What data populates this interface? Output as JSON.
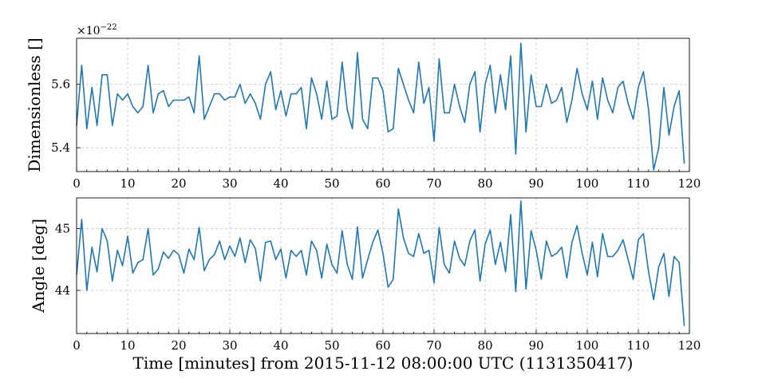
{
  "chart_data": [
    {
      "type": "line",
      "xlabel": "Time [minutes] from 2015-11-12 08:00:00 UTC (1131350417)",
      "ylabel": "Dimensionless []",
      "scale_label": "×10",
      "scale_exponent": "−22",
      "xlim": [
        0,
        120
      ],
      "ylim": [
        5.325,
        5.745
      ],
      "xticks": [
        0,
        10,
        20,
        30,
        40,
        50,
        60,
        70,
        80,
        90,
        100,
        110,
        120
      ],
      "yticks": [
        5.4,
        5.6
      ],
      "ytick_labels": [
        "5.4",
        "5.6"
      ],
      "grid": true,
      "color": "#1f77b4",
      "x": [
        0,
        1,
        2,
        3,
        4,
        5,
        6,
        7,
        8,
        9,
        10,
        11,
        12,
        13,
        14,
        15,
        16,
        17,
        18,
        19,
        20,
        21,
        22,
        23,
        24,
        25,
        26,
        27,
        28,
        29,
        30,
        31,
        32,
        33,
        34,
        35,
        36,
        37,
        38,
        39,
        40,
        41,
        42,
        43,
        44,
        45,
        46,
        47,
        48,
        49,
        50,
        51,
        52,
        53,
        54,
        55,
        56,
        57,
        58,
        59,
        60,
        61,
        62,
        63,
        64,
        65,
        66,
        67,
        68,
        69,
        70,
        71,
        72,
        73,
        74,
        75,
        76,
        77,
        78,
        79,
        80,
        81,
        82,
        83,
        84,
        85,
        86,
        87,
        88,
        89,
        90,
        91,
        92,
        93,
        94,
        95,
        96,
        97,
        98,
        99,
        100,
        101,
        102,
        103,
        104,
        105,
        106,
        107,
        108,
        109,
        110,
        111,
        112,
        113,
        114,
        115,
        116,
        117,
        118,
        119
      ],
      "y": [
        5.47,
        5.66,
        5.46,
        5.59,
        5.47,
        5.63,
        5.63,
        5.47,
        5.57,
        5.55,
        5.57,
        5.53,
        5.51,
        5.53,
        5.66,
        5.51,
        5.57,
        5.58,
        5.53,
        5.55,
        5.55,
        5.55,
        5.56,
        5.51,
        5.69,
        5.49,
        5.53,
        5.57,
        5.57,
        5.55,
        5.56,
        5.56,
        5.6,
        5.54,
        5.57,
        5.54,
        5.49,
        5.6,
        5.64,
        5.52,
        5.58,
        5.5,
        5.57,
        5.57,
        5.59,
        5.46,
        5.62,
        5.57,
        5.49,
        5.61,
        5.49,
        5.5,
        5.67,
        5.52,
        5.46,
        5.7,
        5.49,
        5.46,
        5.62,
        5.62,
        5.58,
        5.45,
        5.46,
        5.65,
        5.6,
        5.55,
        5.51,
        5.67,
        5.54,
        5.59,
        5.42,
        5.68,
        5.51,
        5.51,
        5.6,
        5.53,
        5.48,
        5.6,
        5.64,
        5.45,
        5.6,
        5.66,
        5.51,
        5.63,
        5.52,
        5.69,
        5.38,
        5.73,
        5.45,
        5.63,
        5.53,
        5.53,
        5.6,
        5.54,
        5.55,
        5.59,
        5.48,
        5.55,
        5.65,
        5.57,
        5.52,
        5.61,
        5.49,
        5.62,
        5.55,
        5.51,
        5.59,
        5.61,
        5.54,
        5.49,
        5.59,
        5.64,
        5.52,
        5.33,
        5.4,
        5.59,
        5.44,
        5.53,
        5.58,
        5.35
      ]
    },
    {
      "type": "line",
      "xlabel": "Time [minutes] from 2015-11-12 08:00:00 UTC (1131350417)",
      "ylabel": "Angle [deg]",
      "xlim": [
        0,
        120
      ],
      "ylim": [
        43.3,
        45.5
      ],
      "xticks": [
        0,
        10,
        20,
        30,
        40,
        50,
        60,
        70,
        80,
        90,
        100,
        110,
        120
      ],
      "yticks": [
        44,
        45
      ],
      "ytick_labels": [
        "44",
        "45"
      ],
      "grid": true,
      "color": "#1f77b4",
      "x": [
        0,
        1,
        2,
        3,
        4,
        5,
        6,
        7,
        8,
        9,
        10,
        11,
        12,
        13,
        14,
        15,
        16,
        17,
        18,
        19,
        20,
        21,
        22,
        23,
        24,
        25,
        26,
        27,
        28,
        29,
        30,
        31,
        32,
        33,
        34,
        35,
        36,
        37,
        38,
        39,
        40,
        41,
        42,
        43,
        44,
        45,
        46,
        47,
        48,
        49,
        50,
        51,
        52,
        53,
        54,
        55,
        56,
        57,
        58,
        59,
        60,
        61,
        62,
        63,
        64,
        65,
        66,
        67,
        68,
        69,
        70,
        71,
        72,
        73,
        74,
        75,
        76,
        77,
        78,
        79,
        80,
        81,
        82,
        83,
        84,
        85,
        86,
        87,
        88,
        89,
        90,
        91,
        92,
        93,
        94,
        95,
        96,
        97,
        98,
        99,
        100,
        101,
        102,
        103,
        104,
        105,
        106,
        107,
        108,
        109,
        110,
        111,
        112,
        113,
        114,
        115,
        116,
        117,
        118,
        119
      ],
      "y": [
        44.25,
        45.15,
        44.0,
        44.7,
        44.3,
        45.0,
        44.8,
        44.15,
        44.65,
        44.4,
        44.88,
        44.28,
        44.45,
        44.5,
        45.0,
        44.25,
        44.35,
        44.62,
        44.52,
        44.65,
        44.58,
        44.28,
        44.67,
        44.5,
        45.02,
        44.32,
        44.5,
        44.58,
        44.8,
        44.5,
        44.72,
        44.55,
        44.85,
        44.45,
        44.82,
        44.68,
        44.15,
        44.78,
        44.8,
        44.5,
        44.67,
        44.2,
        44.65,
        44.55,
        44.65,
        44.25,
        44.8,
        44.65,
        44.2,
        44.75,
        44.42,
        44.28,
        44.97,
        44.42,
        44.18,
        45.03,
        44.2,
        44.5,
        44.78,
        44.98,
        44.6,
        44.05,
        44.18,
        45.32,
        44.85,
        44.6,
        44.55,
        44.92,
        44.6,
        44.65,
        44.12,
        45.02,
        44.42,
        44.28,
        44.8,
        44.52,
        44.4,
        44.8,
        44.98,
        44.15,
        44.75,
        44.98,
        44.42,
        44.78,
        44.3,
        45.23,
        43.98,
        45.45,
        44.02,
        44.97,
        44.65,
        44.18,
        44.8,
        44.55,
        44.6,
        44.7,
        44.2,
        44.78,
        45.05,
        44.6,
        44.25,
        44.78,
        44.22,
        44.92,
        44.55,
        44.55,
        44.65,
        44.82,
        44.5,
        44.18,
        44.82,
        44.92,
        44.3,
        43.85,
        44.38,
        44.6,
        43.9,
        44.55,
        44.45,
        43.42
      ]
    }
  ]
}
